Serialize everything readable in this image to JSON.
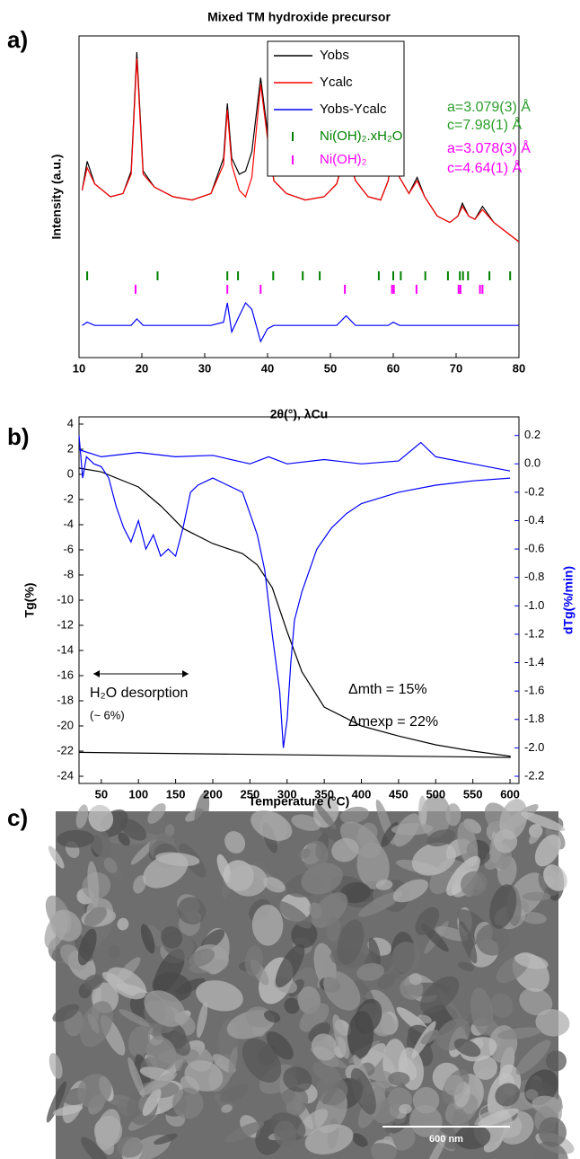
{
  "chart_data": [
    {
      "type": "line",
      "panel": "a)",
      "title": "Mixed TM hydroxide precursor",
      "xlabel": "2θ(°), λCu",
      "ylabel": "Intensity (a.u.)",
      "xlim": [
        10,
        80
      ],
      "xticks": [
        10,
        20,
        30,
        40,
        50,
        60,
        70,
        80
      ],
      "ylim": [
        0,
        100
      ],
      "x": [
        10.5,
        11.3,
        12.5,
        15,
        17,
        18.3,
        19.2,
        20.2,
        22,
        25,
        28,
        31,
        33,
        33.6,
        34.3,
        35.5,
        36.5,
        37.5,
        38.9,
        40,
        41,
        43,
        46,
        49,
        51,
        52.5,
        54,
        56,
        58,
        59.2,
        60,
        61,
        62.5,
        63.8,
        65,
        67,
        69,
        70.3,
        71,
        72,
        73,
        74.2,
        76,
        78,
        80
      ],
      "series": [
        {
          "name": "Yobs",
          "color": "#000000",
          "values": [
            52,
            61,
            54,
            50,
            51,
            58,
            95,
            58,
            53,
            50,
            49,
            51,
            62,
            79,
            62,
            57,
            58,
            64,
            87,
            70,
            55,
            51,
            49,
            50,
            54,
            65,
            55,
            50,
            49,
            55,
            66,
            56,
            51,
            56,
            50,
            44,
            42,
            44,
            48,
            44,
            43,
            47,
            42,
            39,
            36
          ]
        },
        {
          "name": "Ycalc",
          "color": "#ff0000",
          "values": [
            52,
            59,
            54,
            50,
            51,
            57,
            93,
            57,
            53,
            50,
            49,
            51,
            60,
            77,
            60,
            52,
            50,
            56,
            85,
            68,
            55,
            51,
            49,
            50,
            54,
            64,
            55,
            50,
            49,
            55,
            65,
            56,
            51,
            55,
            50,
            44,
            42,
            44,
            47,
            44,
            43,
            46,
            42,
            39,
            36
          ]
        },
        {
          "name": "Yobs-Ycalc",
          "color": "#0000ff",
          "values": [
            10,
            11,
            10,
            10,
            10,
            10,
            12,
            10,
            10,
            10,
            10,
            10,
            11,
            17,
            8,
            13,
            17,
            15,
            5,
            9,
            10,
            10,
            10,
            10,
            10,
            13,
            10,
            10,
            10,
            10,
            11,
            10,
            10,
            10,
            10,
            10,
            10,
            10,
            10,
            10,
            10,
            10,
            10,
            10,
            10
          ]
        }
      ],
      "reflections": [
        {
          "name": "Ni(OH)₂.xH₂O",
          "color": "#008000",
          "positions": [
            11.3,
            22.5,
            33.6,
            35.3,
            40.9,
            45.6,
            48.3,
            57.7,
            60.0,
            61.2,
            65.1,
            68.7,
            70.6,
            71.1,
            71.9,
            75.3,
            78.6
          ]
        },
        {
          "name": "Ni(OH)₂",
          "color": "#ff00ff",
          "positions": [
            19.0,
            33.6,
            38.9,
            52.3,
            59.8,
            60.1,
            63.7,
            70.4,
            70.7,
            73.8,
            74.2
          ]
        }
      ],
      "annotations": [
        {
          "text": "a=3.079(3) Å",
          "color": "#2a9d2a"
        },
        {
          "text": "c=7.98(1) Å",
          "color": "#2a9d2a"
        },
        {
          "text": "a=3.078(3) Å",
          "color": "#ff00ff"
        },
        {
          "text": "c=4.64(1) Å",
          "color": "#ff00ff"
        }
      ]
    },
    {
      "type": "line",
      "panel": "b)",
      "xlabel": "Temperature (°C)",
      "ylabel": "Tg(%)",
      "y2label": "dTg(%/min)",
      "y2color": "#0000ff",
      "xlim": [
        20,
        612
      ],
      "xticks": [
        50,
        100,
        150,
        200,
        250,
        300,
        350,
        400,
        450,
        500,
        550,
        600
      ],
      "ylim": [
        -24,
        4
      ],
      "yticks": [
        -24,
        -22,
        -20,
        -18,
        -16,
        -14,
        -12,
        -10,
        -8,
        -6,
        -4,
        -2,
        0,
        2,
        4
      ],
      "y2lim": [
        -2.2,
        0.28
      ],
      "y2ticks": [
        -2.2,
        {
          "value": -2.0,
          "label": "-2.0"
        },
        -1.8,
        -1.6,
        -1.4,
        -1.2,
        {
          "value": -1.0,
          "label": "-1.0"
        },
        -0.8,
        -0.6,
        -0.4,
        -0.2,
        {
          "value": 0,
          "label": "0.0"
        },
        0.2
      ],
      "series": [
        {
          "color": "#000000",
          "x": [
            20,
            50,
            100,
            130,
            160,
            200,
            240,
            260,
            280,
            300,
            320,
            350,
            400,
            450,
            500,
            550,
            600,
            600,
            20
          ],
          "values": [
            0.5,
            0.2,
            -1,
            -2.5,
            -4.3,
            -5.5,
            -6.3,
            -7.2,
            -9,
            -12.5,
            -15.7,
            -18.5,
            -20,
            -20.8,
            -21.5,
            -22,
            -22.4,
            -22.5,
            -22.1
          ]
        },
        {
          "color": "#0000ff",
          "axis": "y2",
          "x": [
            20,
            25,
            30,
            40,
            50,
            60,
            70,
            80,
            90,
            100,
            110,
            120,
            130,
            140,
            150,
            160,
            170,
            180,
            200,
            220,
            240,
            250,
            260,
            270,
            280,
            290,
            295,
            300,
            305,
            310,
            320,
            340,
            360,
            380,
            400,
            450,
            500,
            550,
            600
          ],
          "values": [
            0.2,
            -0.1,
            0.05,
            0.0,
            -0.02,
            -0.1,
            -0.3,
            -0.45,
            -0.55,
            -0.4,
            -0.6,
            -0.5,
            -0.65,
            -0.6,
            -0.65,
            -0.45,
            -0.2,
            -0.15,
            -0.1,
            -0.15,
            -0.2,
            -0.35,
            -0.5,
            -0.75,
            -1.2,
            -1.6,
            -2.0,
            -1.8,
            -1.4,
            -1.1,
            -0.9,
            -0.6,
            -0.45,
            -0.35,
            -0.28,
            -0.2,
            -0.15,
            -0.12,
            -0.1
          ]
        },
        {
          "color": "#0000ff",
          "axis": "y2",
          "x": [
            20,
            50,
            100,
            150,
            200,
            250,
            275,
            300,
            350,
            400,
            450,
            480,
            500,
            550,
            600
          ],
          "values": [
            0.1,
            0.05,
            0.08,
            0.05,
            0.06,
            0.0,
            0.05,
            0.0,
            0.03,
            0.0,
            0.02,
            0.15,
            0.05,
            0.0,
            -0.05
          ]
        }
      ],
      "annotations": [
        {
          "text": "H₂O desorption",
          "color": "#000000"
        },
        {
          "text": "(~ 6%)",
          "color": "#000000"
        },
        {
          "text": "Δmth = 15%",
          "color": "#000000"
        },
        {
          "text": "Δmexp = 22%",
          "color": "#000000"
        }
      ]
    }
  ],
  "image": {
    "panel": "c)",
    "scale_bar": "600 nm"
  }
}
